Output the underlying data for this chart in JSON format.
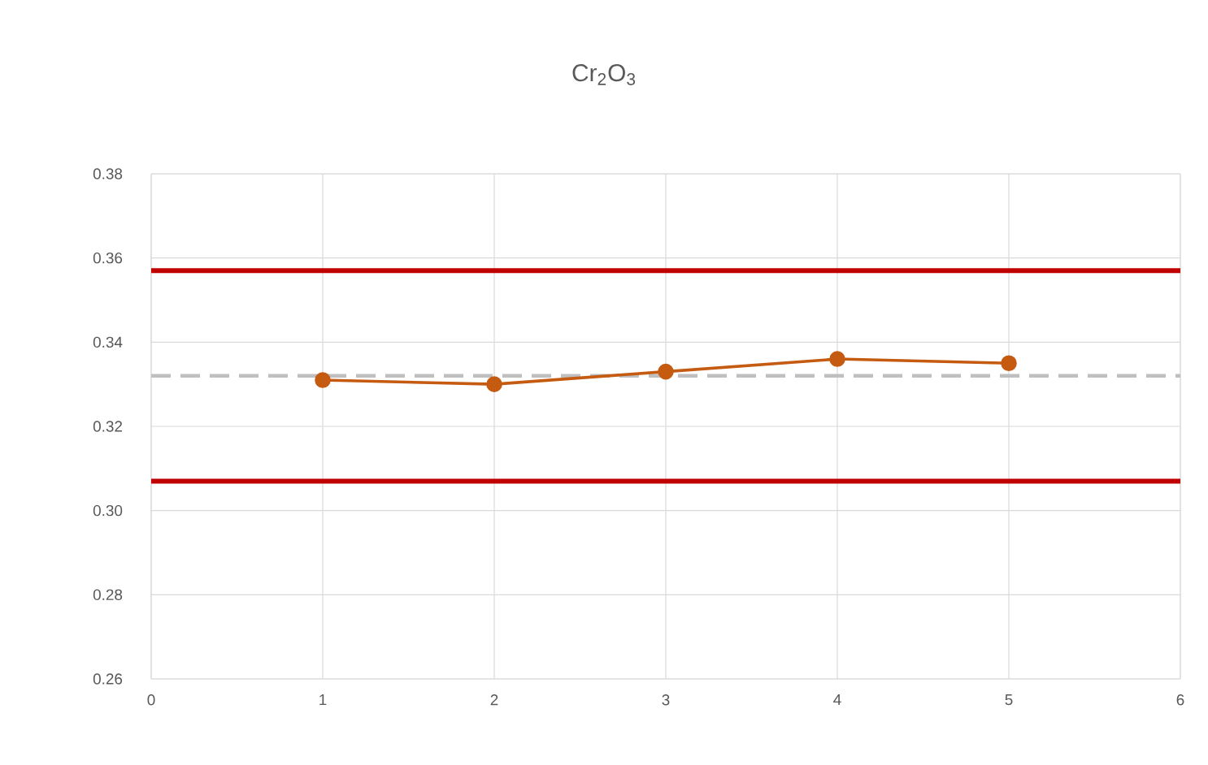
{
  "chart_data": {
    "type": "line",
    "title": "Cr$_{2}$O$_{3}$",
    "x": [
      1,
      2,
      3,
      4,
      5
    ],
    "series": [
      {
        "color": "#c55a11",
        "values": [
          0.331,
          0.33,
          0.333,
          0.336,
          0.335
        ]
      }
    ],
    "xlim": [
      0,
      6
    ],
    "xticks": [
      0,
      1,
      2,
      3,
      4,
      5,
      6
    ],
    "ylim": [
      0.26,
      0.38
    ],
    "yticks": [
      0.26,
      0.28,
      {
        "value": 0.3,
        "label": "0.30"
      },
      0.32,
      0.34,
      0.36,
      0.38
    ],
    "ref_lines": [
      {
        "axis": "y",
        "value": 0.357,
        "color": "#c00000",
        "line_style": "solid"
      },
      {
        "axis": "y",
        "value": 0.307,
        "color": "#c00000",
        "line_style": "solid"
      },
      {
        "axis": "y",
        "value": 0.332,
        "color": "#bfbfbf",
        "line_style": "dashed"
      }
    ],
    "grid": true,
    "marker": "circle",
    "line_style": "solid"
  }
}
